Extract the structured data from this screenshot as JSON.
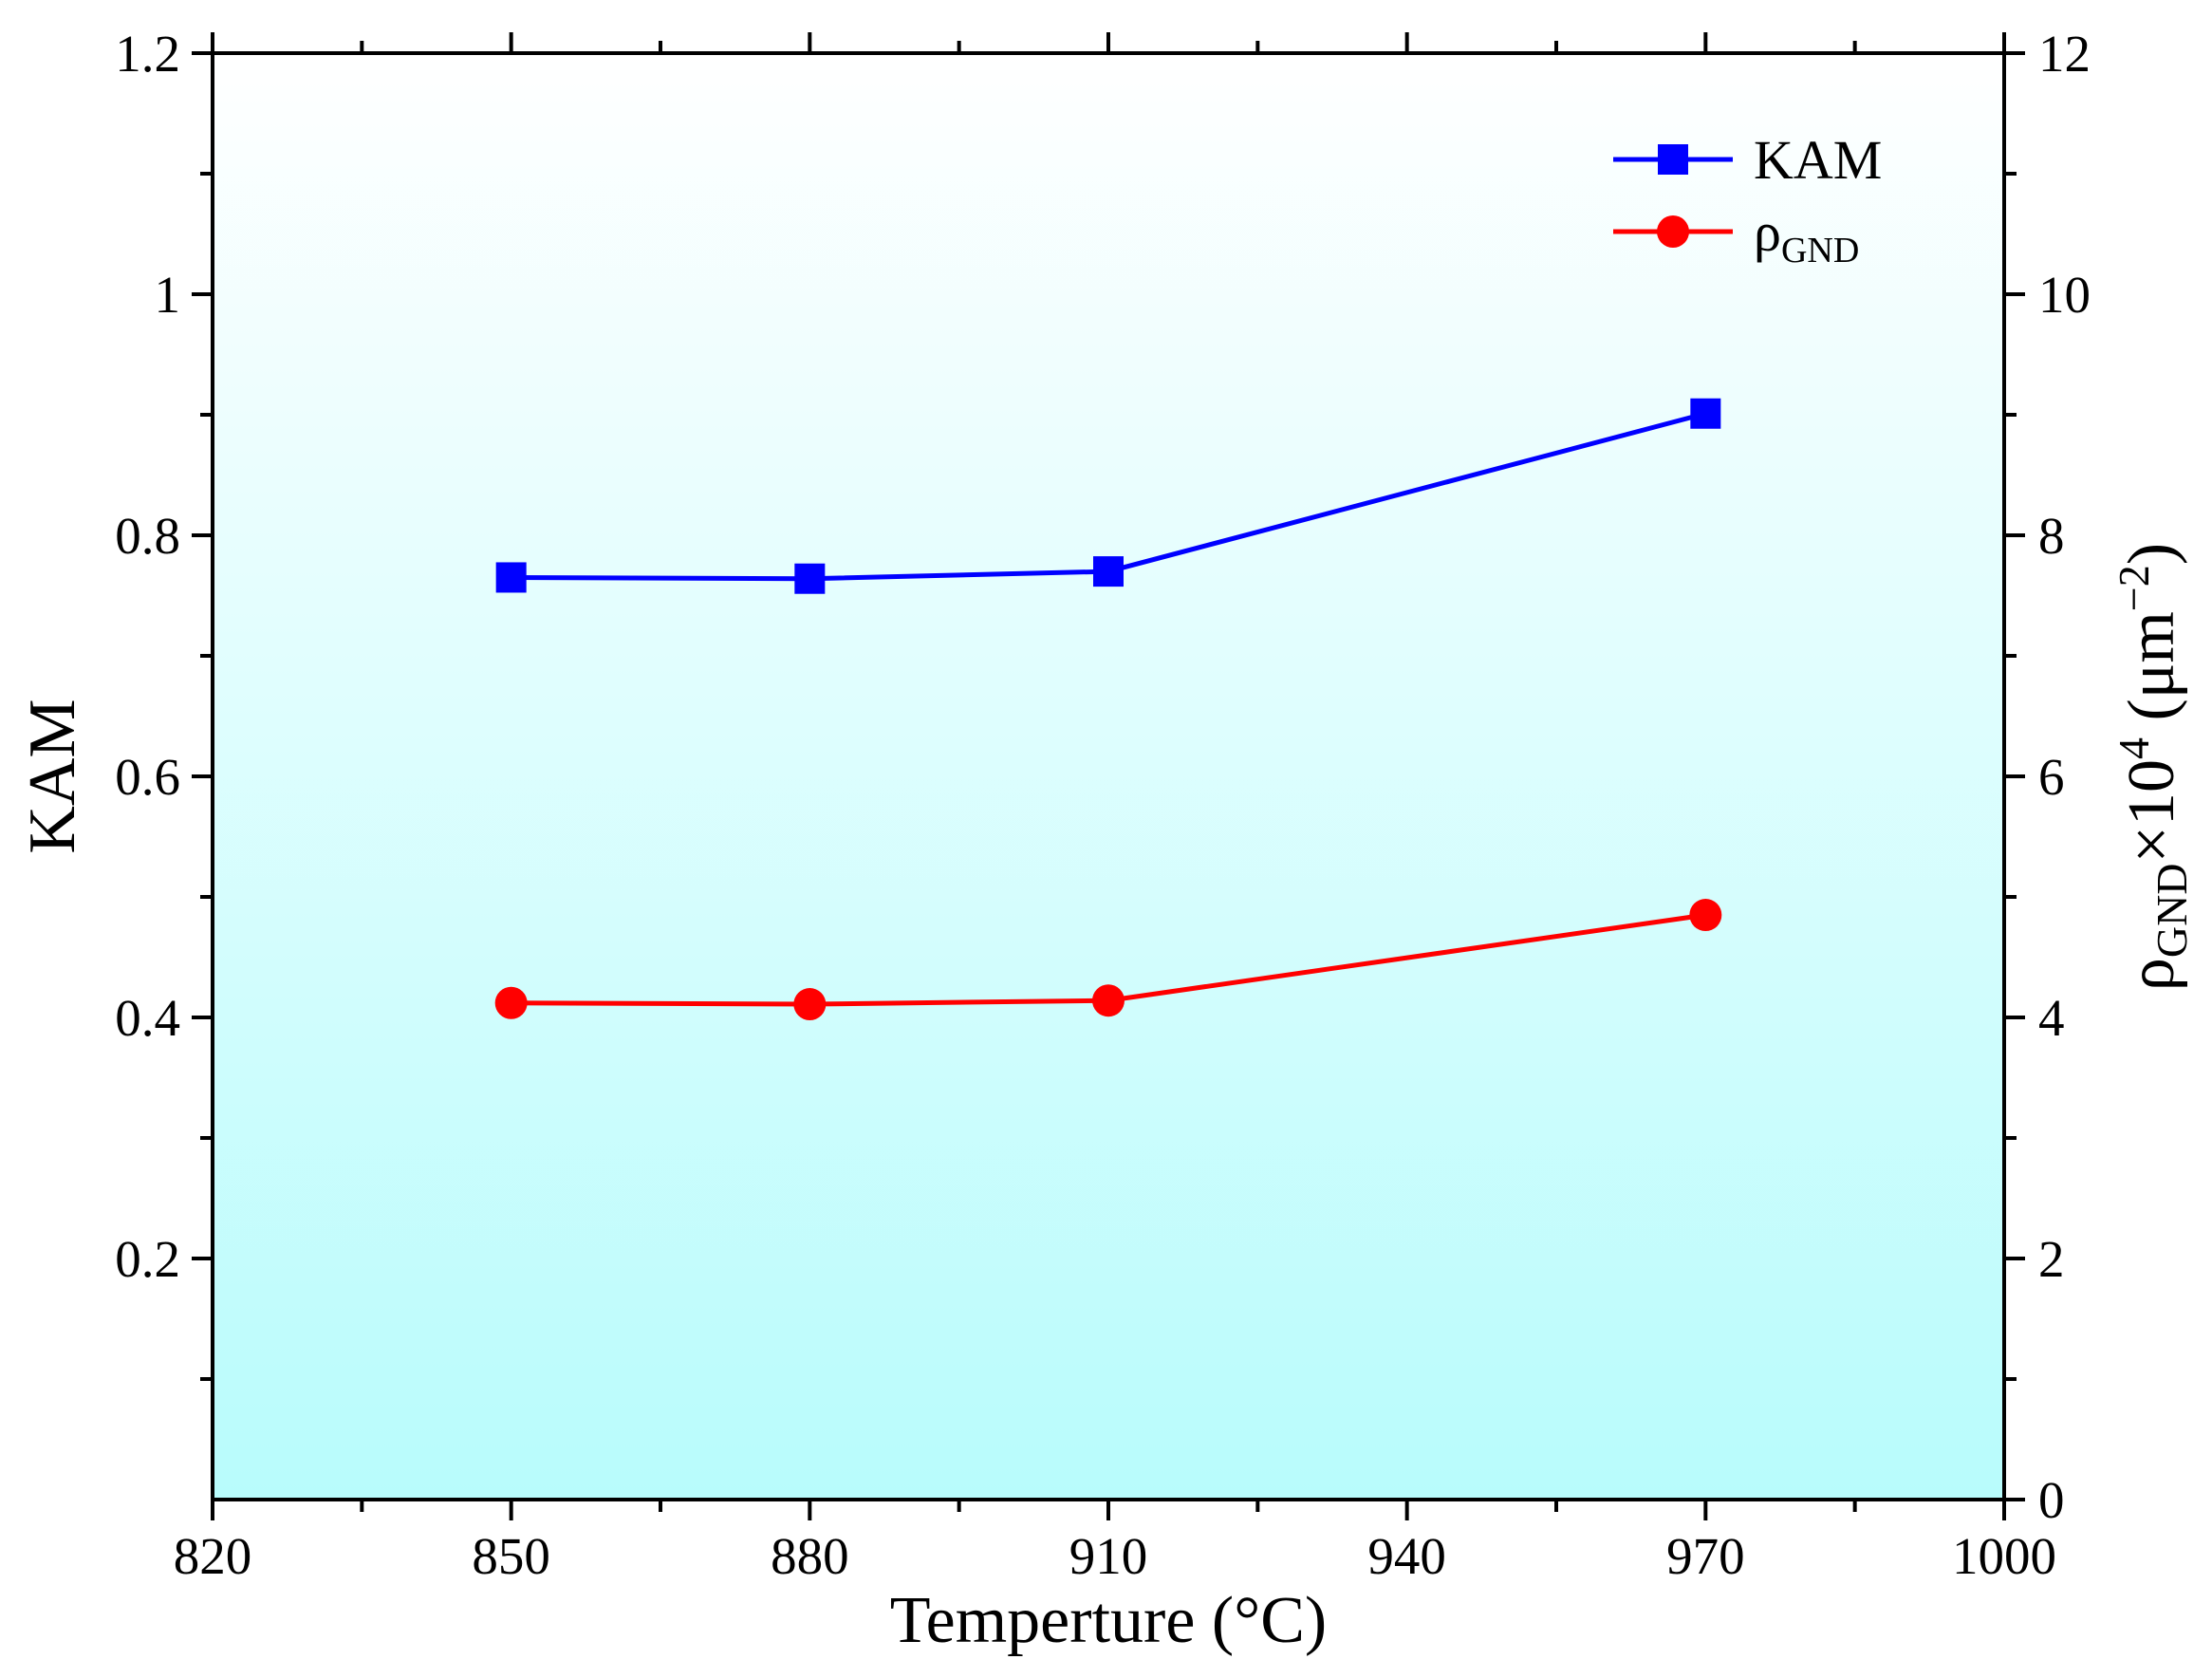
{
  "chart_data": {
    "type": "line",
    "xlabel": "Temperture (°C)",
    "ylabel_left": "KAM",
    "ylabel_right": {
      "base": "ρ",
      "base_sub": "GND",
      "mult": "×10",
      "exp": "4",
      "unit_open": " (μm",
      "unit_exp": "−2",
      "unit_close": ")"
    },
    "xlim": [
      820,
      1000
    ],
    "ylim_left": [
      0,
      1.2
    ],
    "ylim_right": [
      0,
      12
    ],
    "x_ticks": [
      820,
      850,
      880,
      910,
      940,
      970,
      1000
    ],
    "x_tick_labels": [
      "820",
      "850",
      "880",
      "910",
      "940",
      "970",
      "1000"
    ],
    "y_left_ticks": [
      0.2,
      0.4,
      0.6,
      0.8,
      1.0,
      1.2
    ],
    "y_left_tick_labels": [
      "0.2",
      "0.4",
      "0.6",
      "0.8",
      "1",
      "1.2"
    ],
    "y_right_ticks": [
      0,
      2,
      4,
      6,
      8,
      10,
      12
    ],
    "y_right_tick_labels": [
      "0",
      "2",
      "4",
      "6",
      "8",
      "10",
      "12"
    ],
    "background_gradient": [
      "#ffffff",
      "#b8fcfc"
    ],
    "series": [
      {
        "name": "KAM",
        "axis": "left",
        "marker": "square",
        "color": "#0000ff",
        "x": [
          850,
          880,
          910,
          970
        ],
        "values": [
          0.765,
          0.764,
          0.77,
          0.901
        ]
      },
      {
        "name": "ρ",
        "name_sub": "GND",
        "axis": "right",
        "marker": "circle",
        "color": "#ff0000",
        "x": [
          850,
          880,
          910,
          970
        ],
        "values": [
          4.12,
          4.11,
          4.14,
          4.85
        ]
      }
    ],
    "legend_position": "top-right"
  }
}
